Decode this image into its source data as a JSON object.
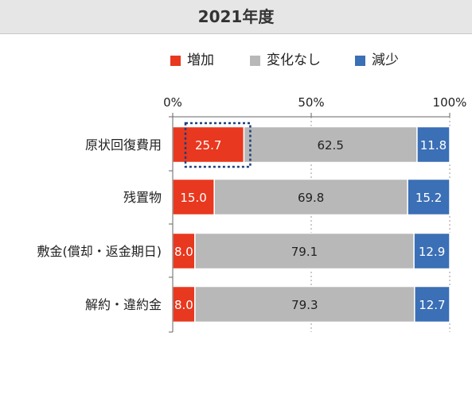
{
  "chart_data": {
    "type": "bar",
    "orientation": "horizontal",
    "stacked": true,
    "title": "2021年度",
    "categories": [
      "原状回復費用",
      "残置物",
      "敷金(償却・返金期日)",
      "解約・違約金"
    ],
    "series": [
      {
        "name": "増加",
        "color": "#e8381f",
        "values": [
          25.7,
          15.0,
          8.0,
          8.0
        ]
      },
      {
        "name": "変化なし",
        "color": "#b8b8b8",
        "values": [
          62.5,
          69.8,
          79.1,
          79.3
        ]
      },
      {
        "name": "減少",
        "color": "#3b6fb6",
        "values": [
          11.8,
          15.2,
          12.9,
          12.7
        ]
      }
    ],
    "x_ticks": [
      "0%",
      "50%",
      "100%"
    ],
    "xlim": [
      0,
      100
    ],
    "legend_position": "top",
    "grid": "dotted vertical at 50% and 100%",
    "highlighted_segment": {
      "category": "原状回復費用",
      "series": "増加",
      "style": "dotted outline"
    }
  }
}
